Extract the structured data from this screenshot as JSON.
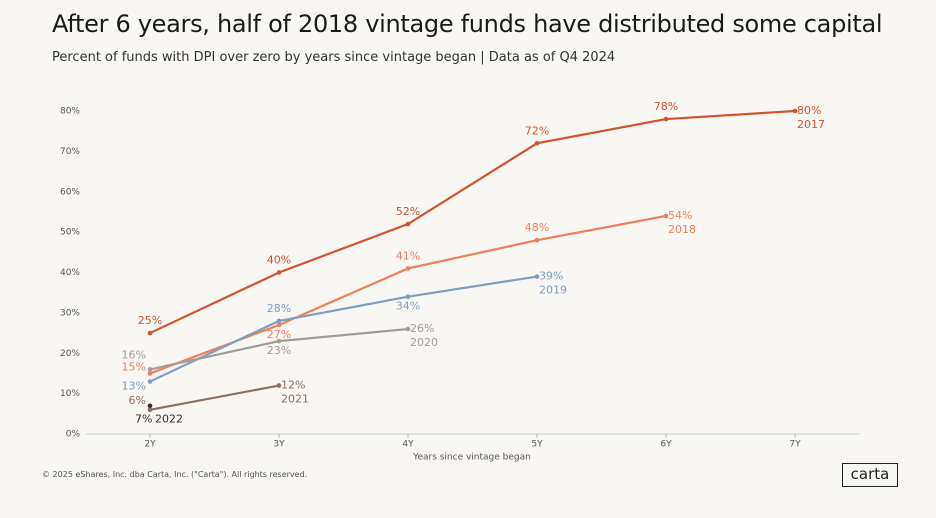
{
  "chart_data": {
    "type": "line",
    "title": "After 6 years, half of 2018 vintage funds have distributed some capital",
    "subtitle": "Percent of funds with DPI over zero by years since vintage began | Data as of Q4 2024",
    "x_label": "Years since vintage began",
    "footer": "© 2025 eShares, Inc. dba Carta, Inc. (\"Carta\"). All rights reserved.",
    "logo": "carta",
    "categories": [
      "2Y",
      "3Y",
      "4Y",
      "5Y",
      "6Y",
      "7Y"
    ],
    "ylim": [
      0,
      80
    ],
    "yticks": [
      {
        "value": 0,
        "label": "0%"
      },
      {
        "value": 10,
        "label": "10%"
      },
      {
        "value": 20,
        "label": "20%"
      },
      {
        "value": 30,
        "label": "30%"
      },
      {
        "value": 40,
        "label": "40%"
      },
      {
        "value": 50,
        "label": "50%"
      },
      {
        "value": 60,
        "label": "60%"
      },
      {
        "value": 70,
        "label": "70%"
      },
      {
        "value": 80,
        "label": "80%"
      }
    ],
    "grid": false,
    "series": [
      {
        "name": "2017",
        "color": "#d2532c",
        "values": [
          25,
          40,
          52,
          72,
          78,
          80
        ],
        "value_labels": [
          "25%",
          "40%",
          "52%",
          "72%",
          "78%",
          "80%"
        ]
      },
      {
        "name": "2018",
        "color": "#f27e58",
        "values": [
          15,
          27,
          41,
          48,
          54,
          null
        ],
        "value_labels": [
          "15%",
          "27%",
          "41%",
          "48%",
          "54%",
          null
        ]
      },
      {
        "name": "2019",
        "color": "#7f9ec2",
        "values": [
          13,
          28,
          34,
          39,
          null,
          null
        ],
        "value_labels": [
          "13%",
          "28%",
          "34%",
          "39%",
          null,
          null
        ]
      },
      {
        "name": "2020",
        "color": "#a39d99",
        "values": [
          16,
          23,
          26,
          null,
          null,
          null
        ],
        "value_labels": [
          "16%",
          "23%",
          "26%",
          null,
          null,
          null
        ]
      },
      {
        "name": "2021",
        "color": "#8c6f62",
        "values": [
          6,
          12,
          null,
          null,
          null,
          null
        ],
        "value_labels": [
          "6%",
          "12%",
          null,
          null,
          null,
          null
        ]
      },
      {
        "name": "2022",
        "color": "#3a2d29",
        "values": [
          7,
          null,
          null,
          null,
          null,
          null
        ],
        "value_labels": [
          "7%",
          null,
          null,
          null,
          null,
          null
        ]
      }
    ]
  }
}
